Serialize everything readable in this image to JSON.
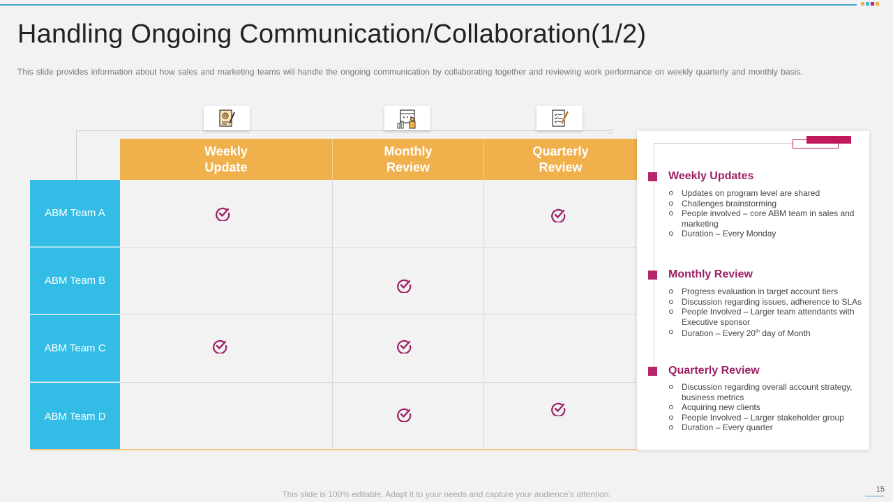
{
  "slide": {
    "title": "Handling Ongoing Communication/Collaboration(1/2)",
    "subtitle": "This slide provides information about how sales and marketing teams will handle the ongoing communication by collaborating together and reviewing work performance on weekly quarterly and monthly basis.",
    "footer": "This slide is 100% editable. Adapt it to your needs and capture your audience’s attention.",
    "page_number": "15"
  },
  "colors": {
    "header_orange": "#f0b04b",
    "row_blue": "#33bde6",
    "accent_magenta": "#b5266b",
    "check_color": "#9c1f66"
  },
  "icons": [
    "document-settings-icon",
    "calendar-chart-icon",
    "checklist-icon"
  ],
  "table": {
    "columns": [
      {
        "line1": "Weekly",
        "line2": "Update"
      },
      {
        "line1": "Monthly",
        "line2": "Review"
      },
      {
        "line1": "Quarterly",
        "line2": "Review"
      }
    ],
    "rows": [
      {
        "label": "ABM Team A",
        "checks": [
          true,
          false,
          true
        ]
      },
      {
        "label": "ABM Team B",
        "checks": [
          false,
          true,
          false
        ]
      },
      {
        "label": "ABM Team C",
        "checks": [
          true,
          true,
          false
        ]
      },
      {
        "label": "ABM Team D",
        "checks": [
          false,
          true,
          true
        ]
      }
    ]
  },
  "panel": {
    "sections": [
      {
        "title": "Weekly Updates",
        "items": [
          "Updates on program level are shared",
          "Challenges brainstorming",
          "People involved – core ABM team in sales and marketing",
          "Duration – Every Monday"
        ]
      },
      {
        "title": "Monthly Review",
        "items": [
          "Progress evaluation in target account tiers",
          "Discussion regarding issues, adherence to SLAs",
          "People Involved – Larger team attendants with Executive sponsor",
          "Duration – Every 20th day of Month"
        ]
      },
      {
        "title": "Quarterly Review",
        "items": [
          "Discussion regarding overall account strategy, business metrics",
          "Acquiring new clients",
          "People Involved – Larger stakeholder group",
          "Duration – Every quarter"
        ]
      }
    ]
  }
}
